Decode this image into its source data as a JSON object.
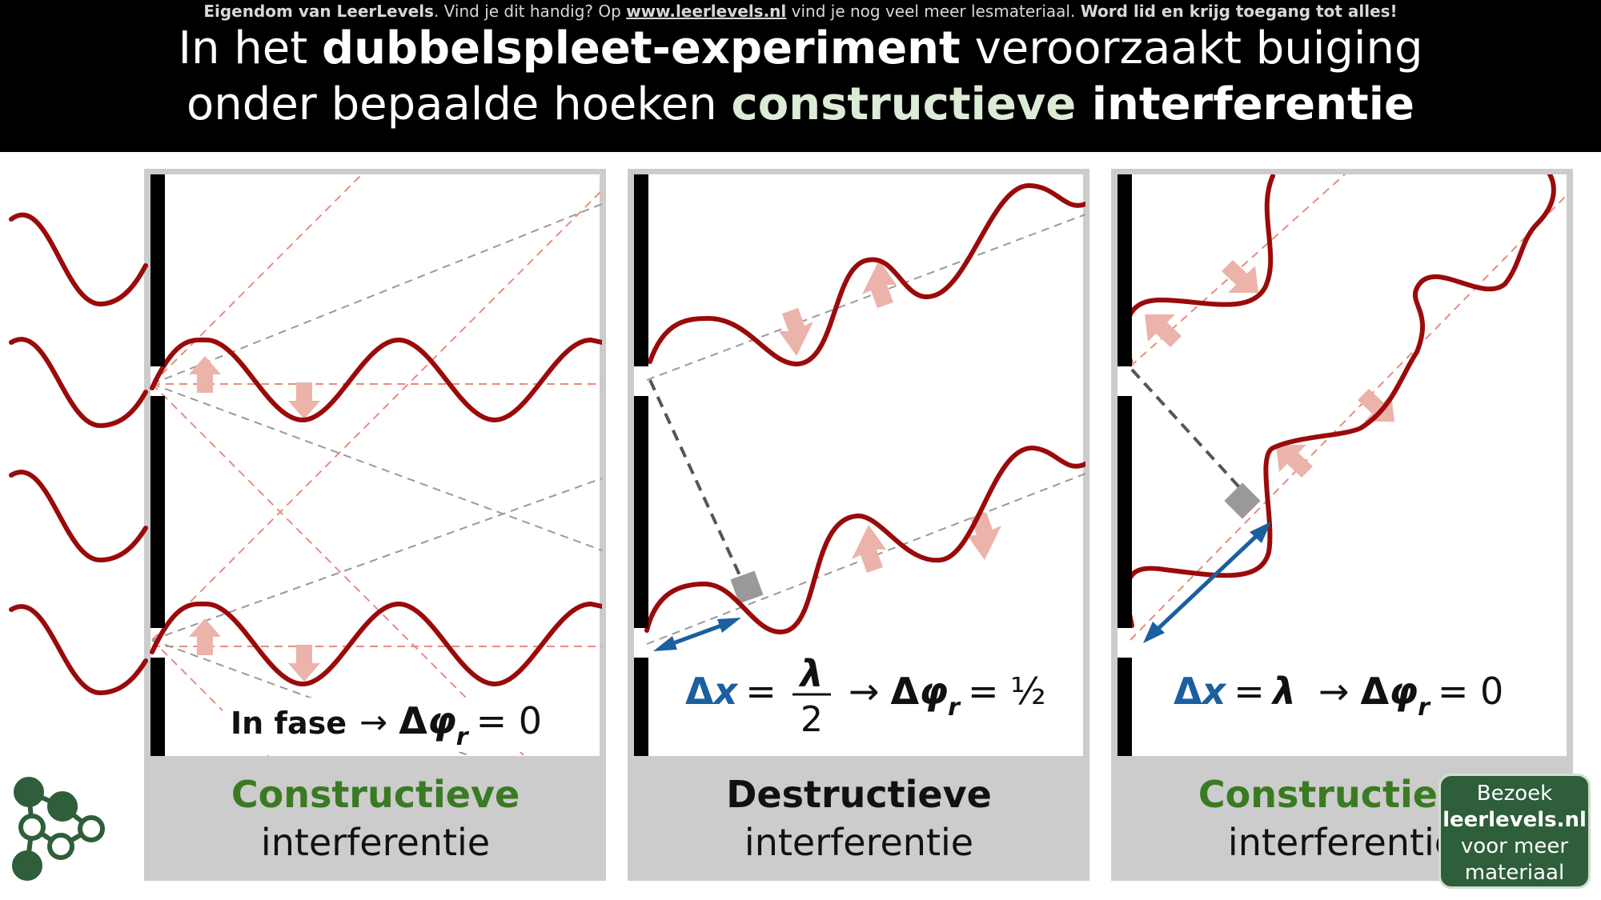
{
  "header": {
    "credit": {
      "part1": "Eigendom van LeerLevels",
      "part2": ". Vind je dit handig? Op ",
      "link": "www.leerlevels.nl",
      "part3": " vind je nog veel meer lesmateriaal. ",
      "part4": "Word lid en krijg toegang tot alles!"
    },
    "title_line1": {
      "a": "In het ",
      "b": "dubbelspleet-experiment",
      "c": " veroorzaakt buiging"
    },
    "title_line2": {
      "a": "onder bepaalde hoeken ",
      "b": "constructieve",
      "c": " interferentie"
    }
  },
  "panels": [
    {
      "caption_strong": "Constructieve",
      "caption_weak": "interferentie",
      "formula": {
        "a": "In fase",
        "arrow": "→",
        "delta": "Δ",
        "phi": "φ",
        "sub": "r",
        "eq": "= 0"
      }
    },
    {
      "caption_strong": "Destructieve",
      "caption_weak": "interferentie",
      "formula": {
        "delta": "Δ",
        "x": "x",
        "eq1": "=",
        "num": "λ",
        "den": "2",
        "arrow": "→",
        "phi": "φ",
        "sub": "r",
        "eq2": "= ½"
      }
    },
    {
      "caption_strong": "Constructieve",
      "caption_weak": "interferentie",
      "formula": {
        "delta": "Δ",
        "x": "x",
        "eq1": "=",
        "lambda": "λ",
        "arrow": "→",
        "phi": "φ",
        "sub": "r",
        "eq2": "= 0"
      }
    }
  ],
  "promo": {
    "line1": "Bezoek",
    "line2": "leerlevels.nl",
    "line3": "voor meer",
    "line4": "materiaal"
  },
  "colors": {
    "wave": "#9b0a0a",
    "light_arrow": "#ebb3aa",
    "dashed_red": "#e88b7e",
    "dashed_gray": "#9a9a9a",
    "blue": "#1a5fa0",
    "green_text": "#3a7a22",
    "logo_green": "#2e5e3a",
    "panel_gray": "#cccccc"
  }
}
